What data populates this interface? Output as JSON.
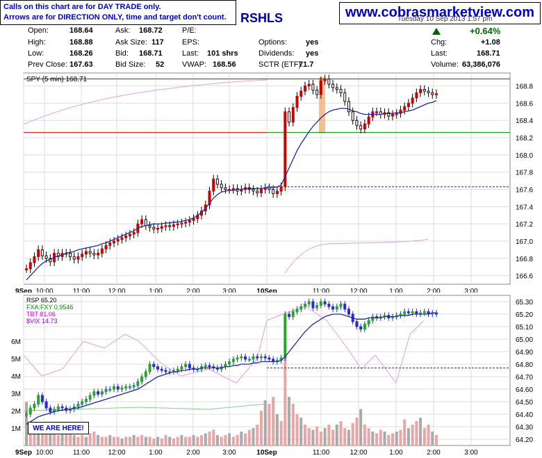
{
  "notice": {
    "line1": "Calls on this chart are for DAY TRADE only.",
    "line2": "Arrows are for DIRECTION ONLY, time and target don't count."
  },
  "brand": "www.cobrasmarketview.com",
  "symbol_fragment": "RSHLS",
  "header_date": "Tuesday  10 Sep 2013  1:57 pm",
  "quote": {
    "open_label": "Open:",
    "open": "168.64",
    "high_label": "High:",
    "high": "168.88",
    "low_label": "Low:",
    "low": "168.26",
    "prev_label": "Prev Close:",
    "prev": "167.63",
    "ask_label": "Ask:",
    "ask": "168.72",
    "asksize_label": "Ask Size:",
    "asksize": "117",
    "bid_label": "Bid:",
    "bid": "168.71",
    "bidsize_label": "Bid Size:",
    "bidsize": "52",
    "pe_label": "P/E:",
    "pe": "",
    "eps_label": "EPS:",
    "eps": "",
    "last_label": "Last:",
    "last": "101 shrs",
    "vwap_label": "VWAP:",
    "vwap": "168.56",
    "options_label": "Options:",
    "options": "yes",
    "div_label": "Dividends:",
    "div": "yes",
    "sctr_label": "SCTR (ETF):",
    "sctr": "71.7",
    "change_pct": "+0.64%",
    "chg_label": "Chg:",
    "chg": "+1.08",
    "last2_label": "Last:",
    "last2": "168.71",
    "vol_label": "Volume:",
    "vol": "63,386,076"
  },
  "colors": {
    "up": "#cc0000",
    "down": "#111111",
    "ma": "#1c2aa0",
    "ref_red": "#cc0000",
    "ref_green": "#008800",
    "highlight": "#f5b57a",
    "pink": "#e0a0e0",
    "vol": "#aaaaaa"
  },
  "chart_data": [
    {
      "type": "line",
      "title": "SPY (5 min) 168.71",
      "ylim": [
        166.5,
        168.95
      ],
      "y_ticks": [
        "168.8",
        "168.6",
        "168.4",
        "168.2",
        "168.0",
        "167.8",
        "167.6",
        "167.4",
        "167.2",
        "167.0",
        "166.8",
        "166.6"
      ],
      "x_ticks": [
        "9Sep",
        "10:00",
        "11:00",
        "12:00",
        "1:00",
        "2:00",
        "3:00",
        "10Sep",
        "11:00",
        "12:00",
        "1:00",
        "2:00",
        "3:00"
      ],
      "reference_lines": [
        168.88,
        168.26,
        167.63
      ],
      "series": [
        {
          "name": "SPY",
          "values": [
            166.68,
            166.75,
            166.82,
            166.9,
            166.83,
            166.8,
            166.76,
            166.86,
            166.82,
            166.86,
            166.86,
            166.82,
            166.79,
            166.82,
            166.85,
            166.88,
            166.86,
            166.84,
            166.86,
            166.91,
            166.95,
            166.98,
            167.0,
            167.02,
            167.04,
            167.06,
            167.08,
            167.1,
            167.2,
            167.25,
            167.18,
            167.16,
            167.14,
            167.15,
            167.17,
            167.18,
            167.17,
            167.19,
            167.2,
            167.21,
            167.22,
            167.24,
            167.26,
            167.3,
            167.35,
            167.42,
            167.58,
            167.72,
            167.66,
            167.62,
            167.6,
            167.6,
            167.61,
            167.58,
            167.6,
            167.62,
            167.6,
            167.58,
            167.56,
            167.6,
            167.62,
            167.6,
            167.55,
            167.58,
            167.63,
            168.5,
            168.38,
            168.55,
            168.68,
            168.74,
            168.8,
            168.82,
            168.75,
            168.7,
            168.86,
            168.88,
            168.82,
            168.78,
            168.76,
            168.72,
            168.62,
            168.5,
            168.4,
            168.34,
            168.3,
            168.36,
            168.44,
            168.5,
            168.5,
            168.47,
            168.49,
            168.45,
            168.47,
            168.48,
            168.52,
            168.56,
            168.6,
            168.66,
            168.72,
            168.76,
            168.74,
            168.72,
            168.7,
            168.71
          ]
        },
        {
          "name": "MA",
          "values": [
            166.55,
            166.6,
            166.65,
            166.7,
            166.74,
            166.77,
            166.79,
            166.81,
            166.83,
            166.84,
            166.86,
            166.87,
            166.88,
            166.9,
            166.91,
            166.92,
            166.93,
            166.94,
            166.95,
            166.97,
            166.98,
            167.0,
            167.02,
            167.04,
            167.06,
            167.08,
            167.1,
            167.12,
            167.15,
            167.17,
            167.18,
            167.19,
            167.2,
            167.2,
            167.2,
            167.21,
            167.21,
            167.22,
            167.22,
            167.23,
            167.24,
            167.25,
            167.27,
            167.3,
            167.33,
            167.38,
            167.44,
            167.5,
            167.54,
            167.57,
            167.58,
            167.59,
            167.59,
            167.6,
            167.6,
            167.61,
            167.61,
            167.61,
            167.61,
            167.61,
            167.62,
            167.62,
            167.62,
            167.63,
            167.65,
            167.75,
            167.85,
            167.95,
            168.05,
            168.13,
            168.2,
            168.27,
            168.33,
            168.38,
            168.43,
            168.47,
            168.5,
            168.52,
            168.53,
            168.54,
            168.54,
            168.53,
            168.51,
            168.5,
            168.48,
            168.47,
            168.47,
            168.47,
            168.47,
            168.47,
            168.48,
            168.48,
            168.48,
            168.49,
            168.49,
            168.5,
            168.51,
            168.52,
            168.54,
            168.56,
            168.58,
            168.6,
            168.61,
            168.63
          ]
        }
      ]
    },
    {
      "type": "line",
      "title": "RSP 65.20",
      "ylim": [
        64.15,
        65.35
      ],
      "y_ticks": [
        "65.30",
        "65.20",
        "65.10",
        "65.00",
        "64.90",
        "64.80",
        "64.70",
        "64.60",
        "64.50",
        "64.40",
        "64.30",
        "64.20"
      ],
      "vol_ticks": [
        "6M",
        "5M",
        "4M",
        "3M",
        "2M",
        "1M"
      ],
      "legend": [
        "RSP 65.20",
        "FXA:FXY 0.9546",
        "TBT 81.06",
        "$VIX 14.73"
      ],
      "x_ticks": [
        "9Sep",
        "10:00",
        "11:00",
        "12:00",
        "1:00",
        "2:00",
        "3:00",
        "10Sep",
        "11:00",
        "12:00",
        "1:00",
        "2:00",
        "3:00"
      ],
      "series": [
        {
          "name": "RSP",
          "values": [
            64.4,
            64.45,
            64.48,
            64.55,
            64.5,
            64.45,
            64.42,
            64.44,
            64.46,
            64.45,
            64.43,
            64.44,
            64.46,
            64.48,
            64.5,
            64.52,
            64.55,
            64.58,
            64.56,
            64.58,
            64.6,
            64.6,
            64.62,
            64.6,
            64.61,
            64.62,
            64.62,
            64.63,
            64.66,
            64.7,
            64.74,
            64.8,
            64.78,
            64.76,
            64.75,
            64.74,
            64.74,
            64.75,
            64.76,
            64.78,
            64.8,
            64.77,
            64.76,
            64.76,
            64.78,
            64.79,
            64.78,
            64.77,
            64.76,
            64.78,
            64.8,
            64.82,
            64.84,
            64.85,
            64.86,
            64.84,
            64.84,
            64.86,
            64.85,
            64.86,
            64.85,
            64.84,
            64.82,
            64.83,
            64.85,
            65.2,
            65.18,
            65.22,
            65.24,
            65.26,
            65.28,
            65.3,
            65.25,
            65.27,
            65.3,
            65.28,
            65.26,
            65.24,
            65.26,
            65.28,
            65.24,
            65.2,
            65.14,
            65.1,
            65.08,
            65.12,
            65.15,
            65.18,
            65.17,
            65.18,
            65.19,
            65.17,
            65.18,
            65.19,
            65.2,
            65.22,
            65.21,
            65.22,
            65.2,
            65.21,
            65.22,
            65.2,
            65.21,
            65.2
          ]
        },
        {
          "name": "MA",
          "values": [
            64.32,
            64.34,
            64.36,
            64.38,
            64.39,
            64.4,
            64.41,
            64.42,
            64.43,
            64.43,
            64.44,
            64.44,
            64.45,
            64.45,
            64.46,
            64.47,
            64.48,
            64.49,
            64.5,
            64.51,
            64.52,
            64.53,
            64.54,
            64.55,
            64.56,
            64.57,
            64.58,
            64.59,
            64.6,
            64.62,
            64.64,
            64.66,
            64.68,
            64.7,
            64.71,
            64.72,
            64.73,
            64.74,
            64.74,
            64.75,
            64.75,
            64.76,
            64.76,
            64.76,
            64.77,
            64.77,
            64.77,
            64.77,
            64.77,
            64.77,
            64.78,
            64.78,
            64.79,
            64.79,
            64.8,
            64.8,
            64.8,
            64.81,
            64.81,
            64.82,
            64.82,
            64.82,
            64.82,
            64.82,
            64.83,
            64.86,
            64.9,
            64.94,
            64.98,
            65.02,
            65.06,
            65.09,
            65.12,
            65.14,
            65.16,
            65.18,
            65.19,
            65.2,
            65.2,
            65.2,
            65.19,
            65.18,
            65.17,
            65.16,
            65.16,
            65.16,
            65.17,
            65.17,
            65.17,
            65.17,
            65.18,
            65.18,
            65.18,
            65.18,
            65.19,
            65.19,
            65.19,
            65.2,
            65.2,
            65.2,
            65.2,
            65.2,
            65.21,
            65.21
          ]
        }
      ],
      "volume": [
        2.5,
        1.2,
        0.9,
        1.0,
        0.8,
        0.9,
        1.1,
        0.7,
        0.6,
        0.8,
        0.7,
        1.0,
        0.6,
        0.5,
        0.6,
        0.5,
        0.7,
        0.8,
        0.6,
        0.5,
        0.5,
        0.6,
        0.5,
        0.5,
        0.4,
        0.5,
        0.5,
        0.6,
        0.5,
        0.6,
        0.5,
        0.5,
        0.4,
        0.5,
        0.4,
        0.6,
        0.5,
        0.4,
        0.5,
        0.6,
        0.5,
        0.5,
        0.6,
        0.5,
        0.6,
        0.7,
        0.8,
        0.9,
        0.6,
        0.5,
        0.6,
        0.7,
        0.5,
        0.6,
        0.8,
        0.7,
        0.9,
        1.0,
        1.2,
        2.0,
        2.6,
        2.4,
        2.8,
        1.8,
        1.4,
        5.3,
        2.8,
        2.4,
        1.8,
        1.6,
        1.2,
        1.0,
        0.9,
        1.1,
        0.8,
        1.0,
        1.2,
        0.9,
        1.2,
        1.4,
        1.0,
        0.9,
        1.3,
        1.6,
        2.1,
        1.2,
        1.0,
        0.8,
        0.7,
        0.9,
        0.8,
        0.6,
        0.7,
        0.8,
        0.9,
        1.5,
        1.0,
        1.2,
        1.4,
        1.6,
        1.0,
        1.2,
        0.8,
        0.6
      ]
    }
  ]
}
